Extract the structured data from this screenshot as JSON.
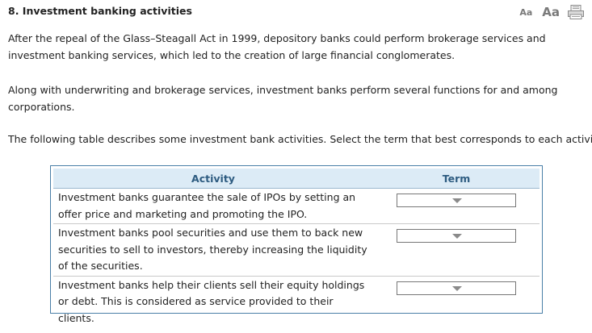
{
  "question": {
    "title": "8. Investment banking activities"
  },
  "toolbar": {
    "font_small_label": "Aa",
    "font_large_label": "Aa",
    "print_icon": "print-icon"
  },
  "paragraphs": {
    "p1": "After the repeal of the Glass–Steagall Act in 1999, depository banks could perform brokerage services and investment banking services, which led to the creation of large financial conglomerates.",
    "p2": "Along with underwriting and brokerage services, investment banks perform several functions for and among corporations.",
    "p3": "The following table describes some investment bank activities. Select the term that best corresponds to each activity."
  },
  "table": {
    "headers": {
      "activity": "Activity",
      "term": "Term"
    },
    "rows": [
      {
        "activity": "Investment banks guarantee the sale of IPOs by setting an offer price and marketing and promoting the IPO.",
        "term": ""
      },
      {
        "activity": "Investment banks pool securities and use them to back new securities to sell to investors, thereby increasing the liquidity of the securities.",
        "term": ""
      },
      {
        "activity": "Investment banks help their clients sell their equity holdings or debt. This is considered as service provided to their clients.",
        "term": ""
      }
    ]
  },
  "colors": {
    "header_bg": "#dcebf6",
    "header_text": "#2d5b80",
    "table_border": "#4a7fa7"
  }
}
